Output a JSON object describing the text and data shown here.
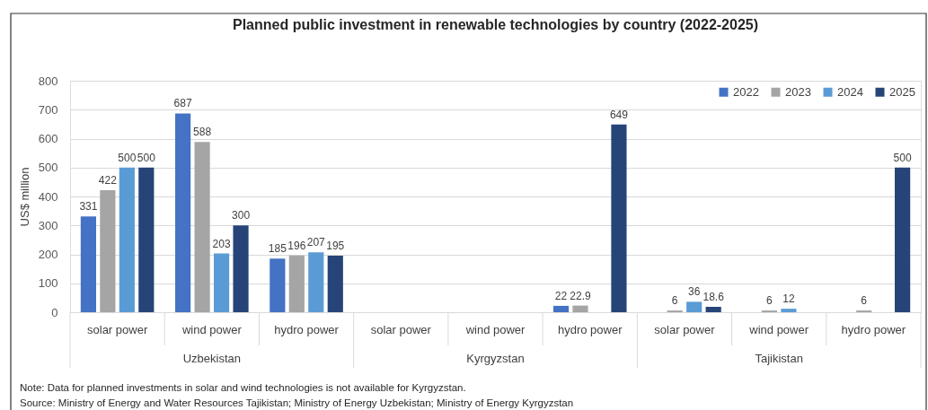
{
  "chart_data": {
    "type": "bar",
    "title": "Planned public investment in renewable technologies by country (2022-2025)",
    "ylabel": "US$ million",
    "categories": [
      "solar power",
      "wind power",
      "hydro power",
      "solar power",
      "wind power",
      "hydro power",
      "solar power",
      "wind power",
      "hydro power"
    ],
    "series": [
      {
        "name": "2022",
        "color": "#4472c4",
        "values": [
          331,
          687,
          185,
          null,
          null,
          22,
          null,
          null,
          null
        ]
      },
      {
        "name": "2023",
        "color": "#a5a5a5",
        "values": [
          422,
          588,
          196,
          null,
          null,
          22.9,
          6,
          6,
          6
        ]
      },
      {
        "name": "2024",
        "color": "#5b9bd5",
        "values": [
          500,
          203,
          207,
          null,
          null,
          null,
          36,
          12,
          null
        ]
      },
      {
        "name": "2025",
        "color": "#264478",
        "values": [
          500,
          300,
          195,
          null,
          null,
          649,
          18.6,
          null,
          500
        ]
      }
    ],
    "ylim": [
      0,
      800
    ],
    "yticks": [
      0,
      100,
      200,
      300,
      400,
      500,
      600,
      700,
      800
    ],
    "grid": "y",
    "legend": "top right",
    "data_labels": true,
    "annotations": [
      "Uzbekistan",
      "Kyrgyzstan",
      "Tajikistan",
      "Note: Data for planned investments in solar and wind technologies is not available for Kyrgyzstan.",
      "Source: Ministry of Energy and Water Resources Tajikistan; Ministry of Energy Uzbekistan; Ministry of Energy Kyrgyzstan"
    ]
  }
}
